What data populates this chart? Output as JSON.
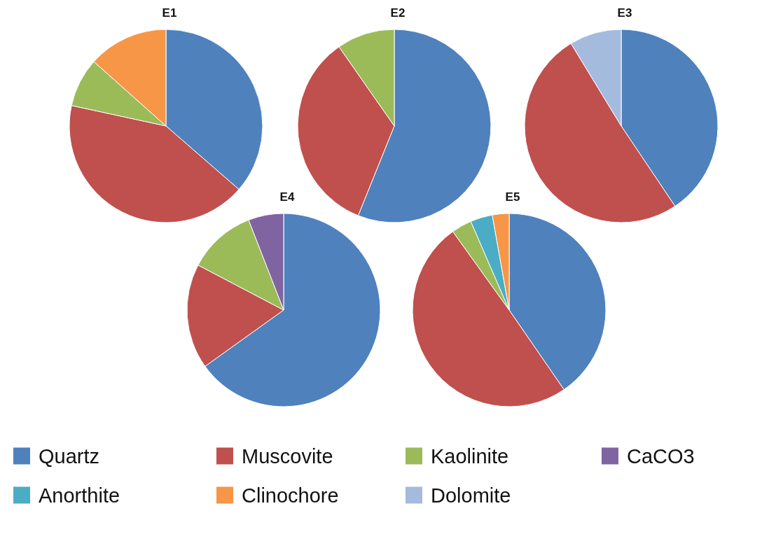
{
  "chart_data": [
    {
      "type": "pie",
      "title": "E1",
      "categories": [
        null,
        null,
        null,
        null
      ],
      "values": [
        36.4,
        42,
        8.2,
        13.4
      ],
      "colors": [
        "#4f81bd",
        "#c0504d",
        "#9bbb59",
        "#f79646"
      ]
    },
    {
      "type": "pie",
      "title": "E2",
      "categories": [
        null,
        null,
        null
      ],
      "values": [
        56.1,
        34.2,
        9.7
      ],
      "colors": [
        "#4f81bd",
        "#c0504d",
        "#9bbb59"
      ]
    },
    {
      "type": "pie",
      "title": "E3",
      "categories": [
        null,
        null,
        "Dolomite"
      ],
      "values": [
        40.6,
        50.7,
        8.7
      ],
      "colors": [
        "#4f81bd",
        "#c0504d",
        "#a5bbdd"
      ],
      "legend": "bottom"
    },
    {
      "type": "pie",
      "title": "E4",
      "categories": [
        "Quartz",
        "Muscovite",
        "Kaolinite",
        "CaCO3"
      ],
      "values": [
        65.1,
        17.6,
        11.4,
        5.9
      ],
      "colors": [
        "#4f81bd",
        "#c0504d",
        "#9bbb59",
        "#8064a2"
      ],
      "legend": "bottom"
    },
    {
      "type": "pie",
      "title": "E5",
      "categories": [
        null,
        null,
        null,
        "Anorthite",
        "Clinochore"
      ],
      "values": [
        40.4,
        49.7,
        3.4,
        3.7,
        2.8
      ],
      "colors": [
        "#4f81bd",
        "#c0504d",
        "#9bbb59",
        "#4bacc6",
        "#f79646"
      ],
      "legend": "bottom"
    }
  ]
}
